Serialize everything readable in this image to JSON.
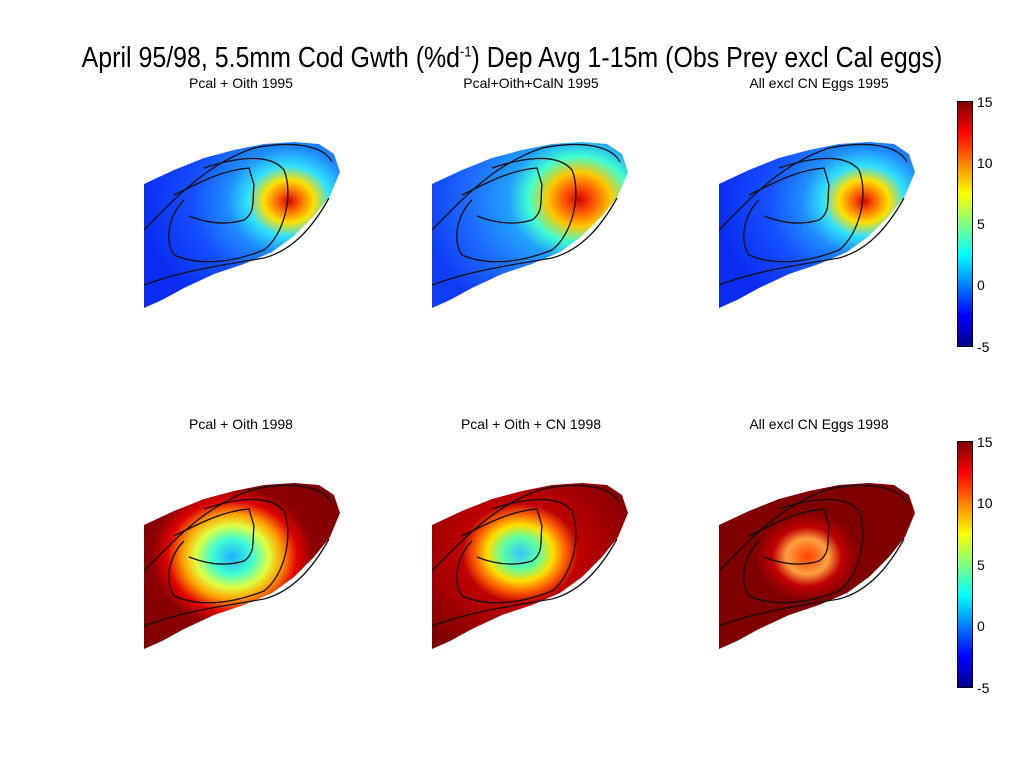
{
  "figure": {
    "title_pre": "April 95/98, 5.5mm Cod Gwth (%d",
    "title_sup": "-1",
    "title_post": ") Dep Avg 1-15m (Obs Prey excl Cal eggs)"
  },
  "panels": [
    {
      "title": "Pcal + Oith 1995"
    },
    {
      "title": "Pcal+Oith+CalN 1995"
    },
    {
      "title": "All excl CN Eggs 1995"
    },
    {
      "title": "Pcal + Oith 1998"
    },
    {
      "title": "Pcal + Oith + CN 1998"
    },
    {
      "title": "All excl CN Eggs 1998"
    }
  ],
  "colorbar": {
    "ticks": [
      "15",
      "10",
      "5",
      "0",
      "-5"
    ],
    "range": [
      -5,
      15
    ],
    "colormap": [
      "#00008f",
      "#0000ff",
      "#0080ff",
      "#00ffff",
      "#80ff80",
      "#ffff00",
      "#ff8000",
      "#ff0000",
      "#800000"
    ]
  }
}
